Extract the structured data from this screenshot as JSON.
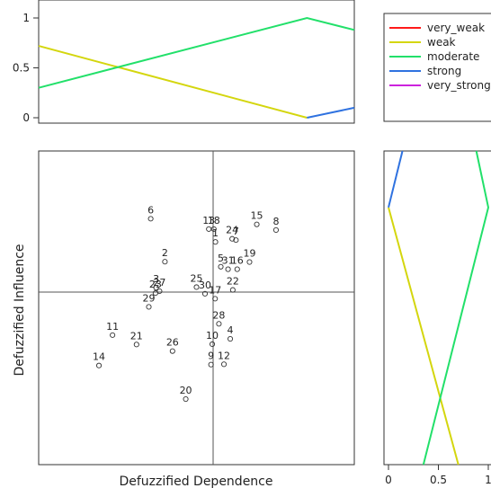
{
  "chart_data": [
    {
      "panel": "top-membership",
      "type": "line",
      "xlim": [
        0,
        1
      ],
      "ylim": [
        0,
        1
      ],
      "yticks": [
        "0",
        "0.5",
        "1"
      ],
      "series": [
        {
          "name": "weak",
          "color": "#d4d60e",
          "x": [
            0,
            0.85
          ],
          "y": [
            0.72,
            0
          ]
        },
        {
          "name": "moderate",
          "color": "#22e06a",
          "x": [
            0,
            0.85,
            1
          ],
          "y": [
            0.3,
            1,
            0.88
          ]
        },
        {
          "name": "strong",
          "color": "#2f72e0",
          "x": [
            0.85,
            1
          ],
          "y": [
            0,
            0.1
          ]
        }
      ]
    },
    {
      "panel": "legend",
      "legend": [
        {
          "name": "very_weak",
          "color": "#ff1a1a"
        },
        {
          "name": "weak",
          "color": "#d4d60e"
        },
        {
          "name": "moderate",
          "color": "#22e06a"
        },
        {
          "name": "strong",
          "color": "#2f72e0"
        },
        {
          "name": "very_strong",
          "color": "#cc22dd"
        }
      ]
    },
    {
      "panel": "main-scatter",
      "type": "scatter",
      "xlabel": "Defuzzified Dependence",
      "ylabel": "Defuzzified Influence",
      "points": [
        {
          "label": "1",
          "x": 0.56,
          "y": 0.71
        },
        {
          "label": "2",
          "x": 0.4,
          "y": 0.647
        },
        {
          "label": "3",
          "x": 0.372,
          "y": 0.564
        },
        {
          "label": "4",
          "x": 0.607,
          "y": 0.401
        },
        {
          "label": "5",
          "x": 0.577,
          "y": 0.631
        },
        {
          "label": "6",
          "x": 0.355,
          "y": 0.784
        },
        {
          "label": "7",
          "x": 0.625,
          "y": 0.716
        },
        {
          "label": "8",
          "x": 0.752,
          "y": 0.748
        },
        {
          "label": "9",
          "x": 0.546,
          "y": 0.319
        },
        {
          "label": "10",
          "x": 0.55,
          "y": 0.384
        },
        {
          "label": "11",
          "x": 0.234,
          "y": 0.413
        },
        {
          "label": "12",
          "x": 0.587,
          "y": 0.32
        },
        {
          "label": "13",
          "x": 0.539,
          "y": 0.751
        },
        {
          "label": "14",
          "x": 0.191,
          "y": 0.316
        },
        {
          "label": "15",
          "x": 0.691,
          "y": 0.766
        },
        {
          "label": "16",
          "x": 0.629,
          "y": 0.623
        },
        {
          "label": "17",
          "x": 0.559,
          "y": 0.529
        },
        {
          "label": "18",
          "x": 0.555,
          "y": 0.751
        },
        {
          "label": "19",
          "x": 0.668,
          "y": 0.646
        },
        {
          "label": "20",
          "x": 0.466,
          "y": 0.209
        },
        {
          "label": "21",
          "x": 0.31,
          "y": 0.383
        },
        {
          "label": "22",
          "x": 0.615,
          "y": 0.557
        },
        {
          "label": "23",
          "x": 0.37,
          "y": 0.547
        },
        {
          "label": "24",
          "x": 0.613,
          "y": 0.72
        },
        {
          "label": "25",
          "x": 0.5,
          "y": 0.566
        },
        {
          "label": "26",
          "x": 0.424,
          "y": 0.362
        },
        {
          "label": "27",
          "x": 0.383,
          "y": 0.553
        },
        {
          "label": "28",
          "x": 0.571,
          "y": 0.449
        },
        {
          "label": "29",
          "x": 0.349,
          "y": 0.503
        },
        {
          "label": "30",
          "x": 0.527,
          "y": 0.545
        },
        {
          "label": "31",
          "x": 0.6,
          "y": 0.623
        }
      ]
    },
    {
      "panel": "right-membership",
      "type": "line",
      "xlim": [
        0,
        1
      ],
      "ylim": [
        0,
        1
      ],
      "xticks": [
        "0",
        "0.5",
        "1"
      ],
      "series": [
        {
          "name": "weak",
          "color": "#d4d60e",
          "x": [
            0,
            0.7
          ],
          "y": [
            0.82,
            0
          ]
        },
        {
          "name": "moderate",
          "color": "#22e06a",
          "x": [
            0.88,
            1,
            0.35
          ],
          "y": [
            1,
            0.82,
            0
          ]
        },
        {
          "name": "strong",
          "color": "#2f72e0",
          "x": [
            0.14,
            0
          ],
          "y": [
            1,
            0.82
          ]
        }
      ]
    }
  ]
}
